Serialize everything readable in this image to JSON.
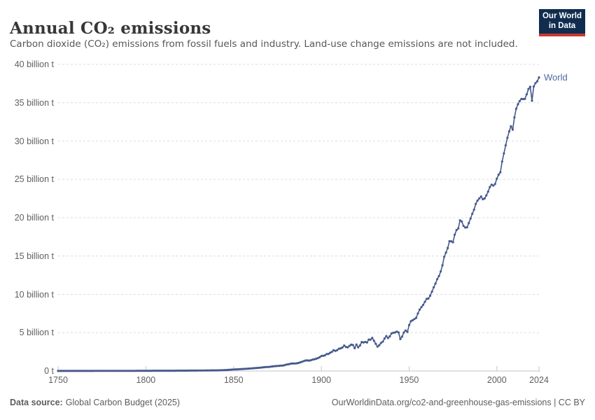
{
  "header": {
    "title": "Annual CO₂ emissions",
    "subtitle": "Carbon dioxide (CO₂) emissions from fossil fuels and industry. Land-use change emissions are not included.",
    "logo": {
      "line1": "Our World",
      "line2": "in Data",
      "bg": "#102d4f",
      "stripe": "#c9392f"
    }
  },
  "chart_data": {
    "type": "line",
    "title": "Annual CO₂ emissions",
    "xlabel": "",
    "ylabel": "",
    "x_start": 1750,
    "x_end": 2024,
    "x_ticks": [
      1750,
      1800,
      1850,
      1900,
      1950,
      2000,
      2024
    ],
    "y_ticks": [
      {
        "value": 0,
        "label": "0 t"
      },
      {
        "value": 5,
        "label": "5 billion t"
      },
      {
        "value": 10,
        "label": "10 billion t"
      },
      {
        "value": 15,
        "label": "15 billion t"
      },
      {
        "value": 20,
        "label": "20 billion t"
      },
      {
        "value": 25,
        "label": "25 billion t"
      },
      {
        "value": 30,
        "label": "30 billion t"
      },
      {
        "value": 35,
        "label": "35 billion t"
      },
      {
        "value": 40,
        "label": "40 billion t"
      }
    ],
    "ylim": [
      0,
      40
    ],
    "grid": "horizontal-dashed",
    "legend_position": "end-of-line",
    "series": [
      {
        "name": "World",
        "color": "#45598c",
        "label_color": "#4d6a9e",
        "unit": "billion t",
        "values": [
          0.009,
          0.009,
          0.009,
          0.01,
          0.01,
          0.01,
          0.01,
          0.011,
          0.011,
          0.011,
          0.011,
          0.011,
          0.012,
          0.012,
          0.012,
          0.012,
          0.013,
          0.013,
          0.013,
          0.013,
          0.013,
          0.014,
          0.014,
          0.014,
          0.014,
          0.015,
          0.015,
          0.015,
          0.015,
          0.016,
          0.016,
          0.016,
          0.016,
          0.017,
          0.017,
          0.018,
          0.018,
          0.018,
          0.019,
          0.019,
          0.019,
          0.02,
          0.021,
          0.021,
          0.022,
          0.023,
          0.024,
          0.025,
          0.026,
          0.028,
          0.03,
          0.03,
          0.031,
          0.031,
          0.032,
          0.032,
          0.033,
          0.033,
          0.034,
          0.034,
          0.035,
          0.036,
          0.036,
          0.037,
          0.038,
          0.039,
          0.04,
          0.041,
          0.042,
          0.043,
          0.044,
          0.045,
          0.047,
          0.048,
          0.05,
          0.051,
          0.053,
          0.055,
          0.057,
          0.059,
          0.061,
          0.063,
          0.065,
          0.068,
          0.07,
          0.073,
          0.076,
          0.079,
          0.082,
          0.084,
          0.085,
          0.09,
          0.095,
          0.1,
          0.11,
          0.12,
          0.13,
          0.145,
          0.16,
          0.18,
          0.197,
          0.21,
          0.22,
          0.232,
          0.248,
          0.262,
          0.276,
          0.29,
          0.3,
          0.32,
          0.34,
          0.355,
          0.37,
          0.392,
          0.412,
          0.432,
          0.458,
          0.48,
          0.508,
          0.52,
          0.534,
          0.56,
          0.59,
          0.62,
          0.64,
          0.66,
          0.68,
          0.7,
          0.71,
          0.76,
          0.83,
          0.87,
          0.92,
          0.97,
          0.99,
          0.98,
          1.0,
          1.05,
          1.13,
          1.21,
          1.3,
          1.37,
          1.38,
          1.36,
          1.41,
          1.49,
          1.53,
          1.6,
          1.68,
          1.79,
          1.95,
          1.99,
          2.04,
          2.21,
          2.23,
          2.37,
          2.49,
          2.7,
          2.63,
          2.72,
          2.9,
          2.96,
          3.07,
          3.32,
          3.14,
          3.09,
          3.28,
          3.43,
          3.39,
          2.98,
          3.45,
          3.1,
          3.33,
          3.78,
          3.73,
          3.79,
          3.72,
          4.1,
          4.09,
          4.32,
          3.94,
          3.55,
          3.19,
          3.37,
          3.65,
          3.84,
          4.25,
          4.56,
          4.3,
          4.52,
          4.9,
          5.0,
          5.02,
          5.14,
          5.02,
          4.16,
          4.48,
          5.01,
          5.29,
          5.1,
          5.99,
          6.49,
          6.62,
          6.78,
          6.93,
          7.51,
          8.01,
          8.34,
          8.62,
          9.03,
          9.41,
          9.45,
          9.82,
          10.36,
          10.91,
          11.41,
          11.98,
          12.38,
          12.99,
          13.79,
          14.9,
          15.44,
          16.04,
          16.93,
          16.92,
          16.79,
          17.78,
          18.39,
          18.6,
          19.66,
          19.5,
          18.92,
          18.72,
          18.74,
          19.3,
          19.9,
          20.51,
          21.04,
          21.81,
          22.24,
          22.51,
          22.77,
          22.41,
          22.51,
          22.91,
          23.41,
          24.0,
          24.31,
          24.19,
          24.4,
          25.1,
          25.62,
          25.93,
          27.32,
          28.39,
          29.44,
          30.42,
          31.26,
          31.94,
          31.49,
          33.08,
          34.21,
          34.79,
          35.22,
          35.49,
          35.48,
          35.5,
          36.1,
          36.79,
          37.08,
          35.26,
          37.12,
          37.55,
          37.79,
          38.3
        ]
      }
    ],
    "axis_color": "#c6c6c6",
    "gridline_color": "#dedede",
    "tick_label_color": "#606060"
  },
  "footer": {
    "source_label": "Data source:",
    "source_value": "Global Carbon Budget (2025)",
    "attribution": "OurWorldinData.org/co2-and-greenhouse-gas-emissions | CC BY"
  }
}
